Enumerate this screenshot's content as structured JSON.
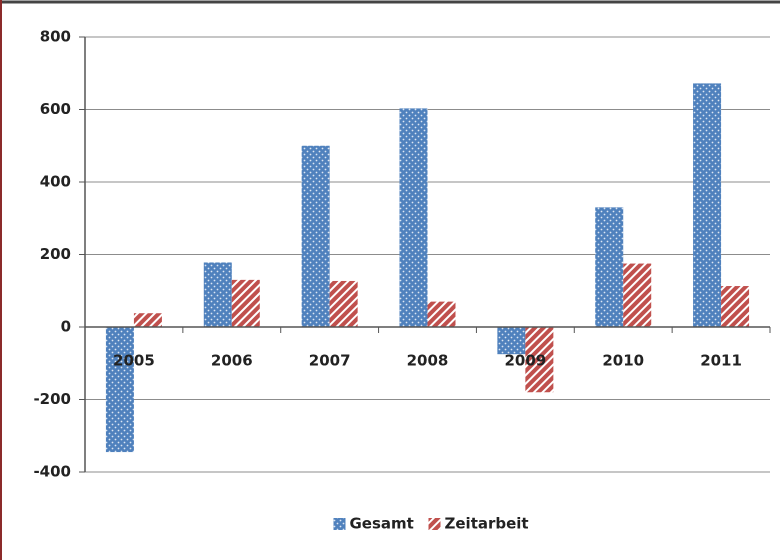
{
  "chart_data": {
    "type": "bar",
    "categories": [
      "2005",
      "2006",
      "2007",
      "2008",
      "2009",
      "2010",
      "2011"
    ],
    "series": [
      {
        "name": "Gesamt",
        "color": "#4f81bd",
        "values": [
          -345,
          178,
          500,
          603,
          -75,
          330,
          672
        ]
      },
      {
        "name": "Zeitarbeit",
        "color": "#c0504d",
        "values": [
          38,
          130,
          127,
          70,
          -180,
          175,
          113
        ]
      }
    ],
    "ylim": [
      -400,
      800
    ],
    "yticks": [
      -400,
      -200,
      0,
      200,
      400,
      600,
      800
    ],
    "grid": true,
    "legend": "bottom"
  }
}
